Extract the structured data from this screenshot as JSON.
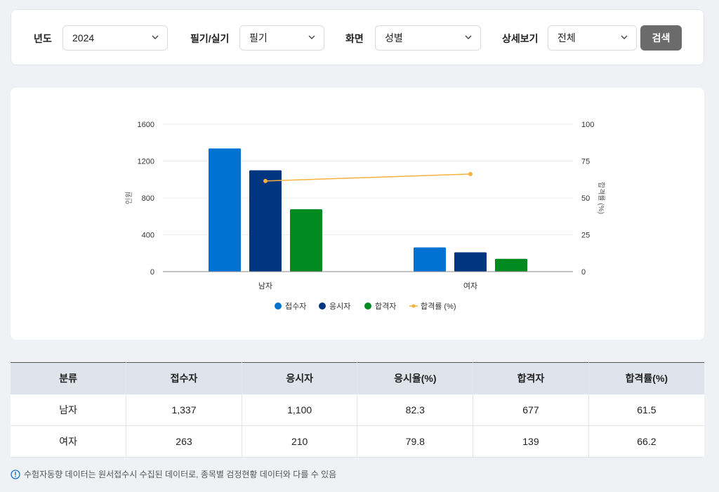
{
  "filters": {
    "year": {
      "label": "년도",
      "value": "2024"
    },
    "exam_type": {
      "label": "필기/실기",
      "value": "필기"
    },
    "view": {
      "label": "화면",
      "value": "성별"
    },
    "detail": {
      "label": "상세보기",
      "value": "전체"
    },
    "search_label": "검색"
  },
  "colors": {
    "applicants": "#0073d2",
    "examinees": "#003580",
    "passers": "#008a20",
    "pass_rate": "#f7b13b"
  },
  "chart_data": {
    "type": "bar",
    "categories": [
      "남자",
      "여자"
    ],
    "series": [
      {
        "name": "접수자",
        "type": "bar",
        "axis": "left",
        "values": [
          1337,
          263
        ]
      },
      {
        "name": "응시자",
        "type": "bar",
        "axis": "left",
        "values": [
          1100,
          210
        ]
      },
      {
        "name": "합격자",
        "type": "bar",
        "axis": "left",
        "values": [
          677,
          139
        ]
      },
      {
        "name": "합격률 (%)",
        "type": "line",
        "axis": "right",
        "values": [
          61.5,
          66.2
        ]
      }
    ],
    "title": "",
    "xlabel": "",
    "ylabel": "인원",
    "y2label": "합격률 (%)",
    "ylim": [
      0,
      1600
    ],
    "yticks": [
      0,
      400,
      800,
      1200,
      1600
    ],
    "y2lim": [
      0,
      100
    ],
    "y2ticks": [
      0,
      25,
      50,
      75,
      100
    ],
    "grid": true,
    "legend_position": "bottom"
  },
  "table": {
    "headers": [
      "분류",
      "접수자",
      "응시자",
      "응시율(%)",
      "합격자",
      "합격률(%)"
    ],
    "rows": [
      [
        "남자",
        "1,337",
        "1,100",
        "82.3",
        "677",
        "61.5"
      ],
      [
        "여자",
        "263",
        "210",
        "79.8",
        "139",
        "66.2"
      ]
    ]
  },
  "note": "수험자동향 데이터는 원서접수시 수집된 데이터로, 종목별 검정현황 데이터와 다를 수 있음"
}
